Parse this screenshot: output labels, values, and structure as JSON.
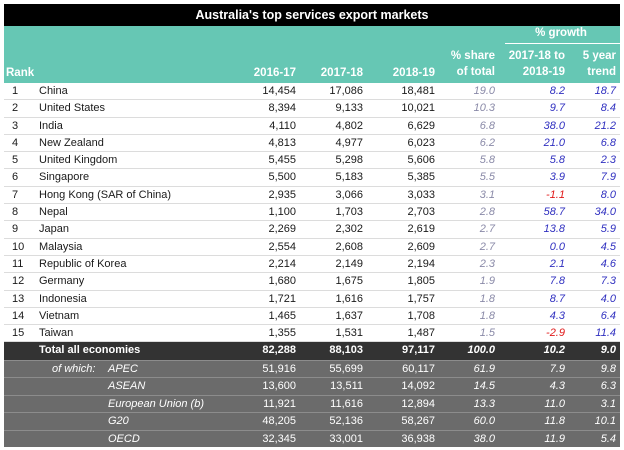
{
  "title": "Australia's top services export markets",
  "header": {
    "rank": "Rank",
    "y1": "2016-17",
    "y2": "2017-18",
    "y3": "2018-19",
    "share_line1": "% share",
    "share_line2": "of total",
    "growth": "% growth",
    "g1_line1": "2017-18 to",
    "g1_line2": "2018-19",
    "g2_line1": "5 year",
    "g2_line2": "trend"
  },
  "rows": [
    {
      "rank": "1",
      "name": "China",
      "y1": "14,454",
      "y2": "17,086",
      "y3": "18,481",
      "share": "19.0",
      "g1": "8.2",
      "g2": "18.7"
    },
    {
      "rank": "2",
      "name": "United States",
      "y1": "8,394",
      "y2": "9,133",
      "y3": "10,021",
      "share": "10.3",
      "g1": "9.7",
      "g2": "8.4"
    },
    {
      "rank": "3",
      "name": "India",
      "y1": "4,110",
      "y2": "4,802",
      "y3": "6,629",
      "share": "6.8",
      "g1": "38.0",
      "g2": "21.2"
    },
    {
      "rank": "4",
      "name": "New Zealand",
      "y1": "4,813",
      "y2": "4,977",
      "y3": "6,023",
      "share": "6.2",
      "g1": "21.0",
      "g2": "6.8"
    },
    {
      "rank": "5",
      "name": "United Kingdom",
      "y1": "5,455",
      "y2": "5,298",
      "y3": "5,606",
      "share": "5.8",
      "g1": "5.8",
      "g2": "2.3"
    },
    {
      "rank": "6",
      "name": "Singapore",
      "y1": "5,500",
      "y2": "5,183",
      "y3": "5,385",
      "share": "5.5",
      "g1": "3.9",
      "g2": "7.9"
    },
    {
      "rank": "7",
      "name": "Hong Kong (SAR of China)",
      "y1": "2,935",
      "y2": "3,066",
      "y3": "3,033",
      "share": "3.1",
      "g1": "-1.1",
      "g2": "8.0"
    },
    {
      "rank": "8",
      "name": "Nepal",
      "y1": "1,100",
      "y2": "1,703",
      "y3": "2,703",
      "share": "2.8",
      "g1": "58.7",
      "g2": "34.0"
    },
    {
      "rank": "9",
      "name": "Japan",
      "y1": "2,269",
      "y2": "2,302",
      "y3": "2,619",
      "share": "2.7",
      "g1": "13.8",
      "g2": "5.9"
    },
    {
      "rank": "10",
      "name": "Malaysia",
      "y1": "2,554",
      "y2": "2,608",
      "y3": "2,609",
      "share": "2.7",
      "g1": "0.0",
      "g2": "4.5"
    },
    {
      "rank": "11",
      "name": "Republic of Korea",
      "y1": "2,214",
      "y2": "2,149",
      "y3": "2,194",
      "share": "2.3",
      "g1": "2.1",
      "g2": "4.6"
    },
    {
      "rank": "12",
      "name": "Germany",
      "y1": "1,680",
      "y2": "1,675",
      "y3": "1,805",
      "share": "1.9",
      "g1": "7.8",
      "g2": "7.3"
    },
    {
      "rank": "13",
      "name": "Indonesia",
      "y1": "1,721",
      "y2": "1,616",
      "y3": "1,757",
      "share": "1.8",
      "g1": "8.7",
      "g2": "4.0"
    },
    {
      "rank": "14",
      "name": "Vietnam",
      "y1": "1,465",
      "y2": "1,637",
      "y3": "1,708",
      "share": "1.8",
      "g1": "4.3",
      "g2": "6.4"
    },
    {
      "rank": "15",
      "name": "Taiwan",
      "y1": "1,355",
      "y2": "1,531",
      "y3": "1,487",
      "share": "1.5",
      "g1": "-2.9",
      "g2": "11.4"
    }
  ],
  "total": {
    "name": "Total all economies",
    "y1": "82,288",
    "y2": "88,103",
    "y3": "97,117",
    "share": "100.0",
    "g1": "10.2",
    "g2": "9.0"
  },
  "of_which_label": "of which:",
  "groups": [
    {
      "name": "APEC",
      "y1": "51,916",
      "y2": "55,699",
      "y3": "60,117",
      "share": "61.9",
      "g1": "7.9",
      "g2": "9.8"
    },
    {
      "name": "ASEAN",
      "y1": "13,600",
      "y2": "13,511",
      "y3": "14,092",
      "share": "14.5",
      "g1": "4.3",
      "g2": "6.3"
    },
    {
      "name": "European Union (b)",
      "y1": "11,921",
      "y2": "11,616",
      "y3": "12,894",
      "share": "13.3",
      "g1": "11.0",
      "g2": "3.1"
    },
    {
      "name": "G20",
      "y1": "48,205",
      "y2": "52,136",
      "y3": "58,267",
      "share": "60.0",
      "g1": "11.8",
      "g2": "10.1"
    },
    {
      "name": "OECD",
      "y1": "32,345",
      "y2": "33,001",
      "y3": "36,938",
      "share": "38.0",
      "g1": "11.9",
      "g2": "5.4"
    }
  ],
  "colors": {
    "header_bg": "#66c7b4",
    "title_bg": "#000000",
    "total_bg": "#333333",
    "group_bg": "#6b6b6b",
    "growth_text": "#3030c0",
    "negative_text": "#e01818",
    "share_text": "#8a8aa8"
  }
}
